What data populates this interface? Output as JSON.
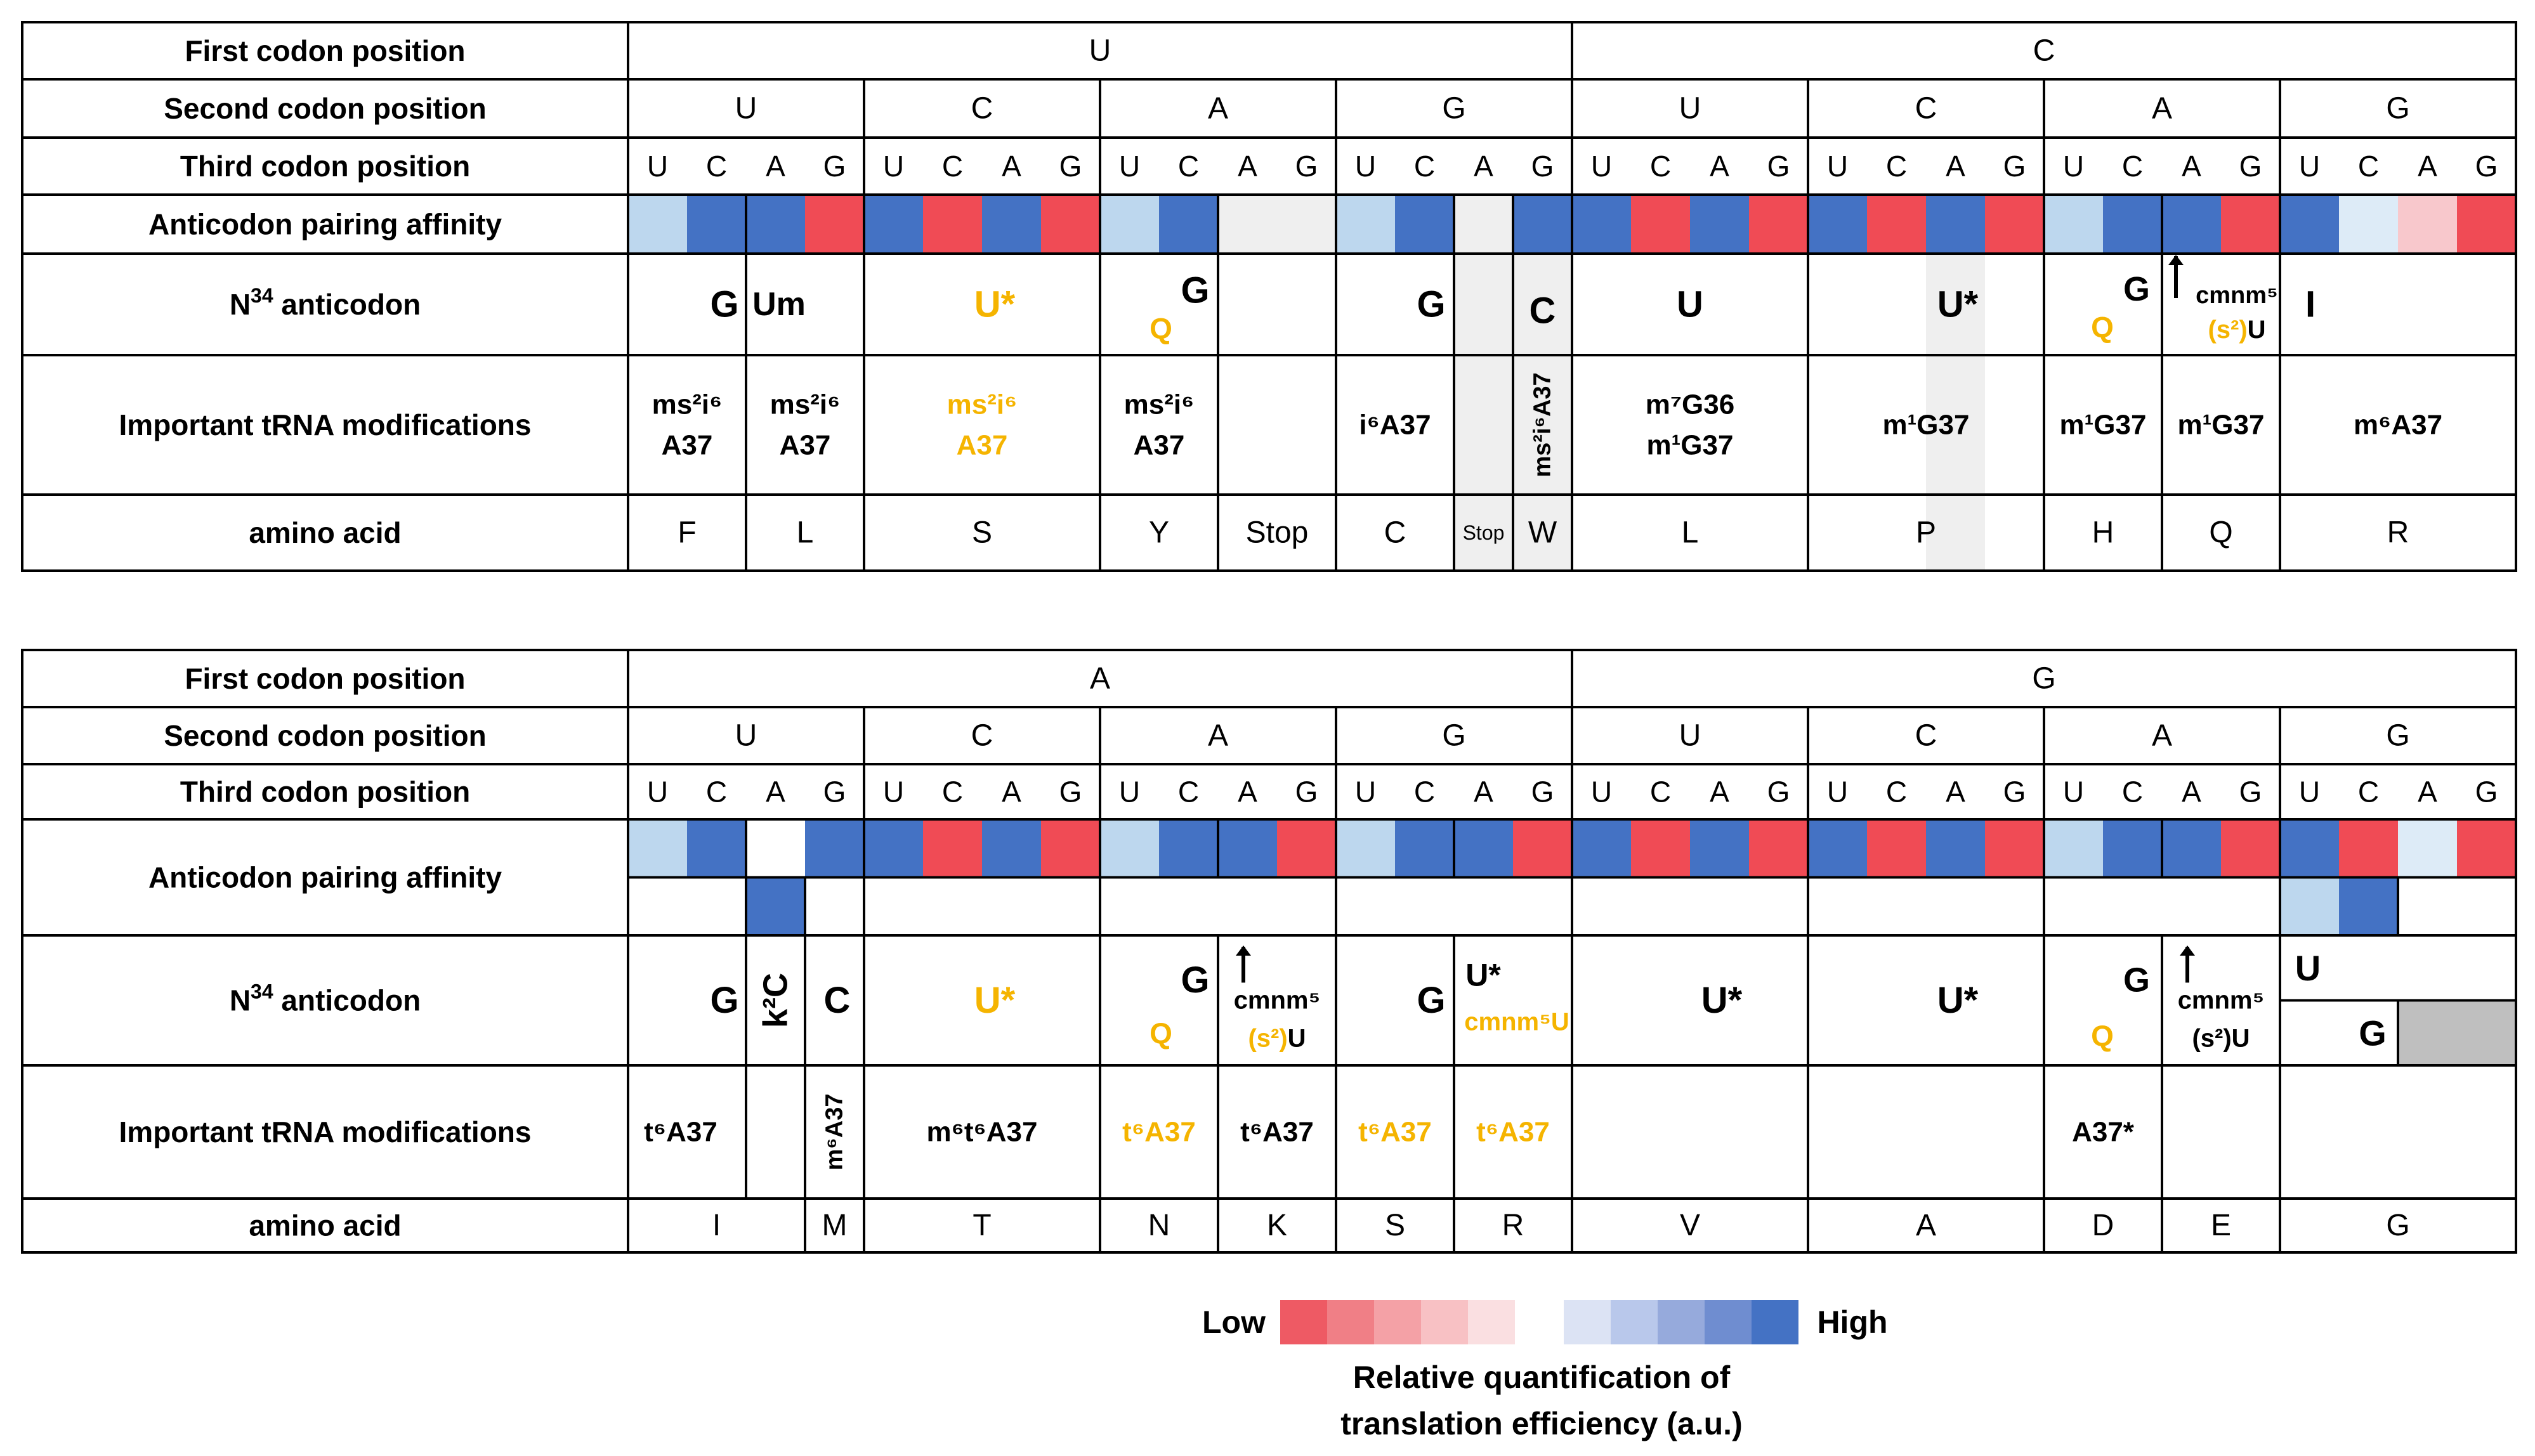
{
  "colors": {
    "line": "#000000",
    "high": "#4472C4",
    "light_blue": "#BDD7EE",
    "pale_blue": "#DDEBF7",
    "red": "#F04B55",
    "pink": "#F8C8CC",
    "empty_gray": "#EFEFEF",
    "dark_gray": "#BFBFBF",
    "orange": "#F5B400",
    "scale_low": [
      "#EE5A64",
      "#F07F86",
      "#F4A1A6",
      "#F8C1C4",
      "#FADFE1"
    ],
    "scale_high": [
      "#DCE3F4",
      "#B9C8EB",
      "#96AADC",
      "#6F8DD0",
      "#4472C4"
    ]
  },
  "row_labels": {
    "first": "First codon position",
    "second": "Second codon position",
    "third": "Third codon position",
    "affinity": "Anticodon pairing affinity",
    "n34_prefix": "N",
    "n34_super": "34",
    "n34_suffix": " anticodon",
    "mods": "Important tRNA modifications",
    "aa": "amino acid"
  },
  "tables": [
    {
      "first_positions": [
        "U",
        "C"
      ],
      "second_positions": [
        "U",
        "C",
        "A",
        "G",
        "U",
        "C",
        "A",
        "G"
      ],
      "third_positions": [
        "U",
        "C",
        "A",
        "G"
      ],
      "affinity_top": [
        "lb",
        "hi",
        "hi",
        "red",
        "hi",
        "red",
        "hi",
        "red",
        "lb",
        "hi",
        "empty",
        "empty",
        "lb",
        "hi",
        "empty",
        "hi",
        "hi",
        "red",
        "hi",
        "red",
        "hi",
        "red",
        "hi",
        "red",
        "lb",
        "hi",
        "hi",
        "red",
        "hi",
        "pb",
        "pk",
        "red"
      ],
      "affinity_bottom": [],
      "anticodons": [
        {
          "text": "G",
          "color": "black"
        },
        {
          "text": "Um",
          "color": "black"
        },
        {
          "text": "U*",
          "color": "orange"
        },
        {
          "text": "G",
          "color": "black",
          "extra": "Q"
        },
        {
          "text": "G",
          "color": "black"
        },
        {
          "text": "C",
          "color": "black"
        },
        {
          "text": "U",
          "color": "black"
        },
        {
          "text": "U*",
          "color": "black"
        },
        {
          "text": "G",
          "color": "black",
          "extra": "Q"
        },
        {
          "text": "cmnm5",
          "sup": "5",
          "lower": "(s2)U",
          "color": "black"
        },
        {
          "text": "I",
          "color": "black"
        }
      ],
      "modifications": [
        {
          "l1": "ms²i⁶",
          "l2": "A37",
          "color": "black"
        },
        {
          "l1": "ms²i⁶",
          "l2": "A37",
          "color": "black"
        },
        {
          "l1": "ms²i⁶",
          "l2": "A37",
          "color": "orange"
        },
        {
          "l1": "ms²i⁶",
          "l2": "A37",
          "color": "black"
        },
        {
          "l1": "i⁶A37",
          "color": "black"
        },
        {
          "l1": "ms²i⁶A37",
          "color": "black",
          "vertical": true
        },
        {
          "l1": "m⁷G36",
          "l2": "m¹G37",
          "color": "black"
        },
        {
          "l1": "m¹G37",
          "color": "black"
        },
        {
          "l1": "m¹G37",
          "color": "black"
        },
        {
          "l1": "m¹G37",
          "color": "black"
        },
        {
          "l1": "m⁶A37",
          "color": "black"
        }
      ],
      "amino_acids": [
        "F",
        "L",
        "S",
        "Y",
        "Stop",
        "C",
        "Stop",
        "W",
        "L",
        "P",
        "H",
        "Q",
        "R"
      ]
    },
    {
      "first_positions": [
        "A",
        "G"
      ],
      "second_positions": [
        "U",
        "C",
        "A",
        "G",
        "U",
        "C",
        "A",
        "G"
      ],
      "third_positions": [
        "U",
        "C",
        "A",
        "G"
      ],
      "affinity_top": [
        "lb",
        "hi",
        "white",
        "hi",
        "hi",
        "red",
        "hi",
        "red",
        "lb",
        "hi",
        "hi",
        "red",
        "lb",
        "hi",
        "hi",
        "red",
        "hi",
        "red",
        "hi",
        "red",
        "hi",
        "red",
        "hi",
        "red",
        "lb",
        "hi",
        "hi",
        "red",
        "hi",
        "red",
        "pb",
        "red"
      ],
      "affinity_bottom": [
        {
          "col": 2,
          "v": "hi"
        },
        {
          "col": 28,
          "v": "lb"
        },
        {
          "col": 29,
          "v": "hi"
        }
      ],
      "anticodons": [
        {
          "text": "G",
          "color": "black"
        },
        {
          "text": "k²C",
          "color": "black",
          "vertical": true
        },
        {
          "text": "C",
          "color": "black"
        },
        {
          "text": "U*",
          "color": "orange"
        },
        {
          "text": "G",
          "color": "black",
          "extra": "Q"
        },
        {
          "text": "cmnm⁵",
          "lower": "(s²)U",
          "color": "black",
          "lower_color": "orange"
        },
        {
          "text": "G",
          "color": "black"
        },
        {
          "text": "U*",
          "color": "black",
          "lower": "cmnm⁵U",
          "lower_color": "orange"
        },
        {
          "text": "U*",
          "color": "black"
        },
        {
          "text": "U*",
          "color": "black"
        },
        {
          "text": "G",
          "color": "black",
          "extra": "Q"
        },
        {
          "text": "cmnm⁵",
          "lower": "(s²)U",
          "color": "black"
        },
        {
          "text": "U",
          "color": "black"
        },
        {
          "text": "G",
          "color": "black"
        }
      ],
      "modifications": [
        {
          "l1": "t⁶A37",
          "color": "black"
        },
        {
          "l1": "m⁶A37",
          "color": "black",
          "vertical": true
        },
        {
          "l1": "m⁶t⁶A37",
          "color": "black"
        },
        {
          "l1": "t⁶A37",
          "color": "orange"
        },
        {
          "l1": "t⁶A37",
          "color": "black"
        },
        {
          "l1": "t⁶A37",
          "color": "orange"
        },
        {
          "l1": "t⁶A37",
          "color": "orange"
        },
        {
          "l1": "A37*",
          "color": "black"
        }
      ],
      "amino_acids": [
        "I",
        "M",
        "T",
        "N",
        "K",
        "S",
        "R",
        "V",
        "A",
        "D",
        "E",
        "G"
      ]
    }
  ],
  "legend": {
    "low": "Low",
    "high": "High",
    "caption1": "Relative quantification of",
    "caption2": "translation efficiency (a.u.)"
  }
}
